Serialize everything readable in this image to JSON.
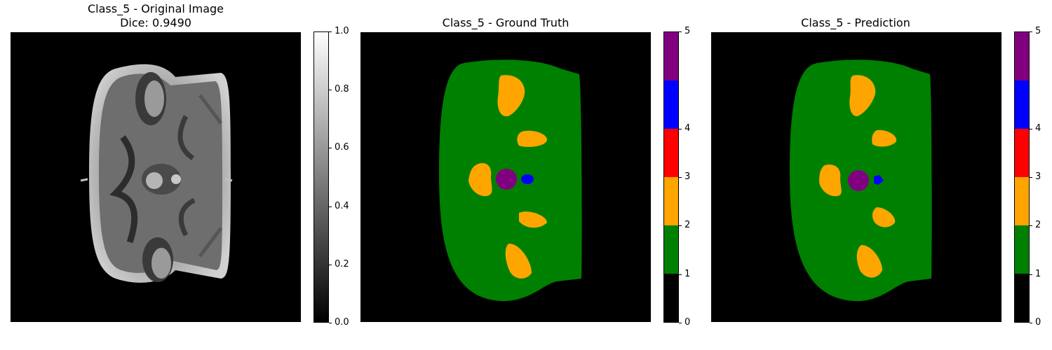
{
  "panels": [
    {
      "title_lines": [
        "Class_5 - Original Image",
        "Dice: 0.9490"
      ],
      "colorbar": {
        "type": "gray",
        "ticks": [
          "0.0",
          "0.2",
          "0.4",
          "0.6",
          "0.8",
          "1.0"
        ]
      }
    },
    {
      "title_lines": [
        "Class_5 - Ground Truth"
      ],
      "colorbar": {
        "type": "segmentation",
        "ticks": [
          "0",
          "1",
          "2",
          "3",
          "4",
          "5"
        ]
      }
    },
    {
      "title_lines": [
        "Class_5 - Prediction"
      ],
      "colorbar": {
        "type": "segmentation",
        "ticks": [
          "0",
          "1",
          "2",
          "3",
          "4",
          "5"
        ]
      }
    }
  ],
  "segmentation_colors": [
    "#000000",
    "#008000",
    "#ffa500",
    "#ff0000",
    "#0000ff",
    "#800080"
  ]
}
